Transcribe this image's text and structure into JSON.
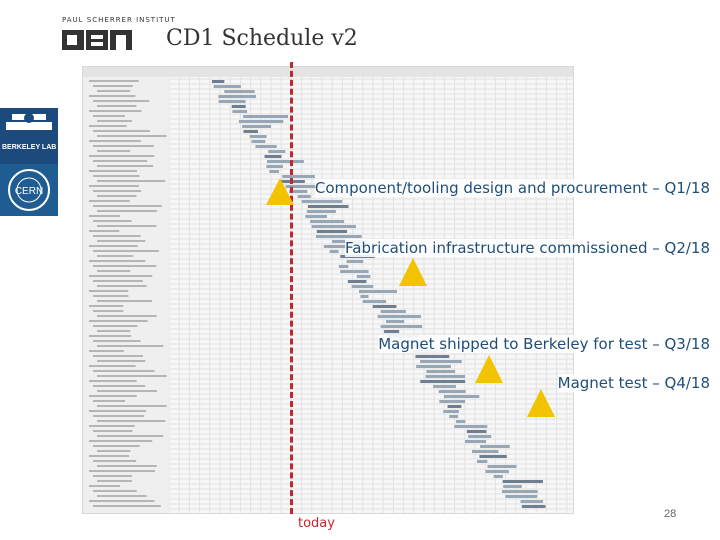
{
  "header": {
    "institute": "PAUL SCHERRER INSTITUT",
    "title": "CD1 Schedule v2"
  },
  "logos": {
    "side": "BERKELEY LAB",
    "cern": "CERN"
  },
  "milestones": [
    {
      "label": "Component/tooling design and procurement – Q1/18"
    },
    {
      "label": "Fabrication infrastructure commissioned – Q2/18"
    },
    {
      "label": "Magnet shipped to Berkeley for test – Q3/18"
    },
    {
      "label": "Magnet test – Q4/18"
    }
  ],
  "today_label": "today",
  "page_number": "28",
  "colors": {
    "milestone": "#f4c300",
    "today": "#c0282d",
    "label": "#1f4e79"
  }
}
